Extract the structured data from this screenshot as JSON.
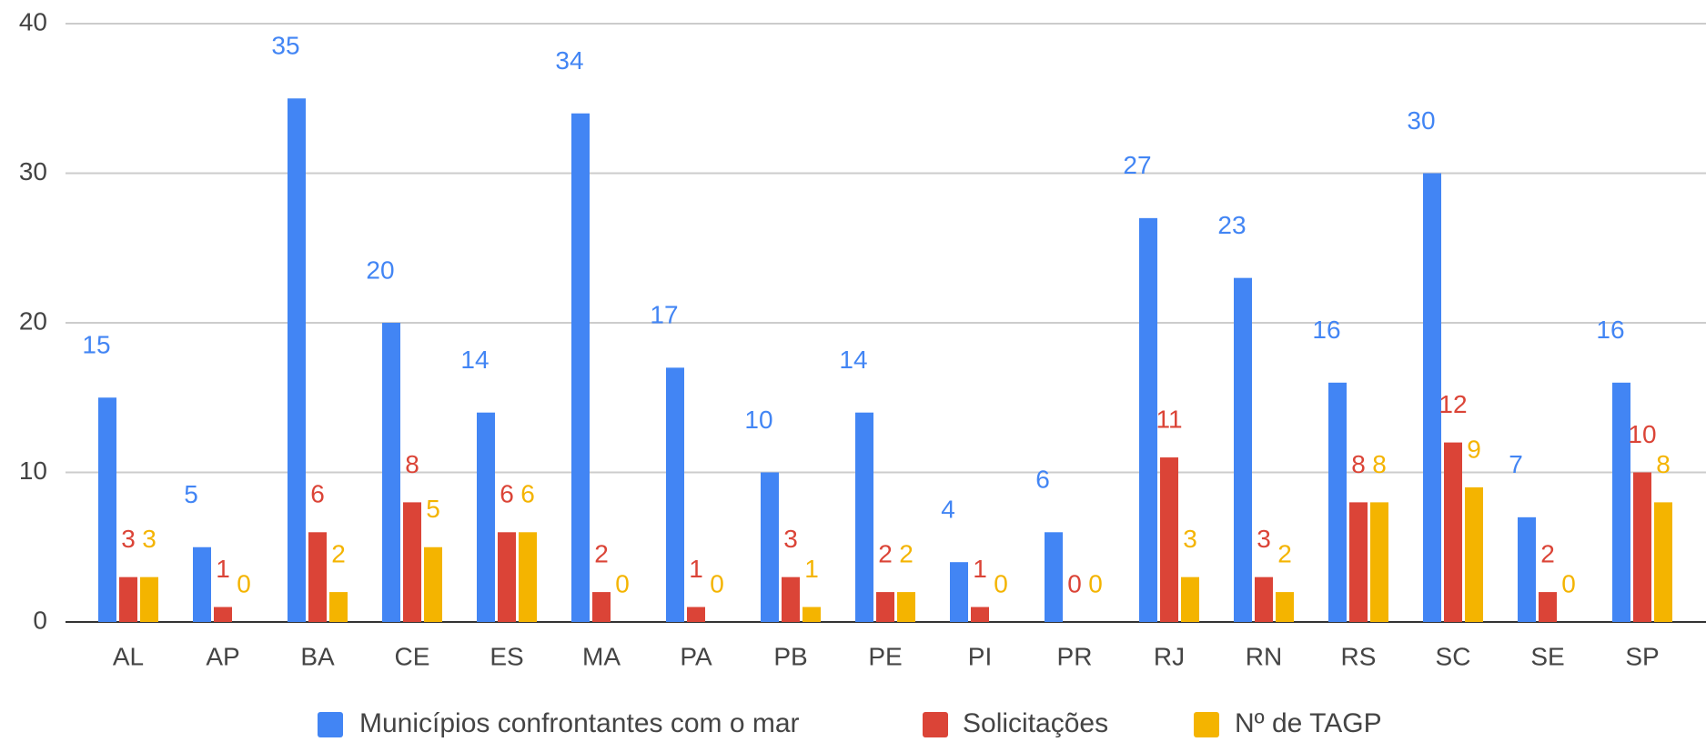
{
  "chart_data": {
    "type": "bar",
    "categories": [
      "AL",
      "AP",
      "BA",
      "CE",
      "ES",
      "MA",
      "PA",
      "PB",
      "PE",
      "PI",
      "PR",
      "RJ",
      "RN",
      "RS",
      "SC",
      "SE",
      "SP"
    ],
    "series": [
      {
        "name": "Municípios confrontantes com o mar",
        "color": "#4285f4",
        "values": [
          15,
          5,
          35,
          20,
          14,
          34,
          17,
          10,
          14,
          4,
          6,
          27,
          23,
          16,
          30,
          7,
          16
        ]
      },
      {
        "name": "Solicitações",
        "color": "#db4437",
        "values": [
          3,
          1,
          6,
          8,
          6,
          2,
          1,
          3,
          2,
          1,
          0,
          11,
          3,
          8,
          12,
          2,
          10
        ]
      },
      {
        "name": "Nº de TAGP",
        "color": "#f4b400",
        "values": [
          3,
          0,
          2,
          5,
          6,
          0,
          0,
          1,
          2,
          0,
          0,
          3,
          2,
          8,
          9,
          0,
          8
        ]
      }
    ],
    "ylim": [
      0,
      40
    ],
    "yticks": [
      0,
      10,
      20,
      30,
      40
    ],
    "grid": true,
    "legend": "bottom"
  }
}
